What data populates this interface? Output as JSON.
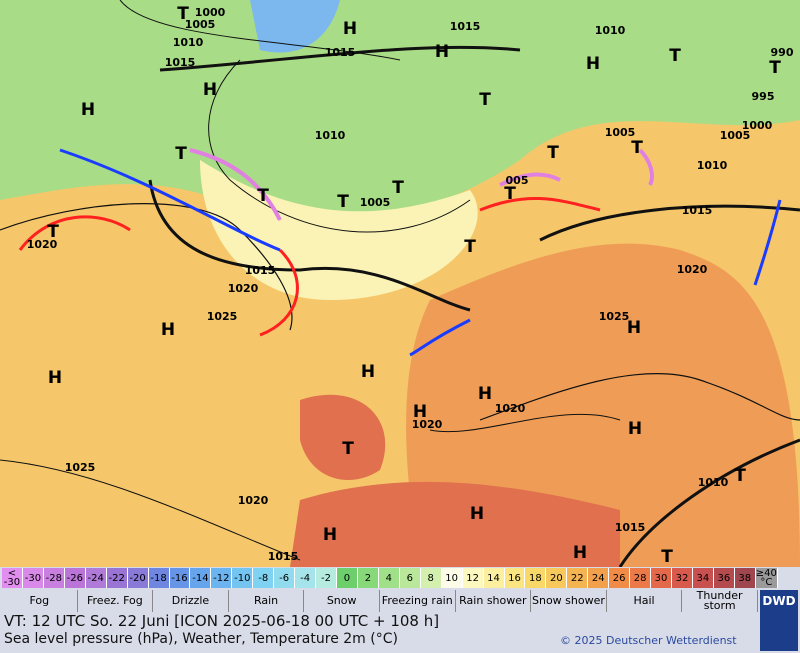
{
  "map": {
    "pressure_labels": [
      "1000",
      "1005",
      "1010",
      "1015",
      "1015",
      "1010",
      "1015",
      "1010",
      "1005",
      "1005",
      "1010",
      "1015",
      "1000",
      "1005",
      "995",
      "990",
      "1020",
      "1015",
      "1020",
      "1025",
      "1020",
      "1025",
      "1020",
      "1020",
      "1025",
      "1020",
      "1010",
      "1015",
      "1015",
      "005"
    ],
    "centers": [
      "H",
      "H",
      "H",
      "H",
      "H",
      "H",
      "H",
      "H",
      "H",
      "H",
      "H",
      "H",
      "H",
      "H",
      "H",
      "T",
      "T",
      "T",
      "T",
      "T",
      "T",
      "T",
      "T",
      "T",
      "T",
      "T",
      "T",
      "T",
      "T",
      "T",
      "T"
    ]
  },
  "temperature_scale": {
    "steps": [
      {
        "label": "<\n-30",
        "color": "#e28ef0"
      },
      {
        "label": "-30",
        "color": "#d98ae8"
      },
      {
        "label": "-28",
        "color": "#c97fe0"
      },
      {
        "label": "-26",
        "color": "#bb74d8"
      },
      {
        "label": "-24",
        "color": "#b07ad8"
      },
      {
        "label": "-22",
        "color": "#9a74d4"
      },
      {
        "label": "-20",
        "color": "#8a7ad8"
      },
      {
        "label": "-18",
        "color": "#6f86e0"
      },
      {
        "label": "-16",
        "color": "#6694e6"
      },
      {
        "label": "-14",
        "color": "#66a4ec"
      },
      {
        "label": "-12",
        "color": "#6cb4f0"
      },
      {
        "label": "-10",
        "color": "#74c4f2"
      },
      {
        "label": "-8",
        "color": "#80d2f2"
      },
      {
        "label": "-6",
        "color": "#90dcee"
      },
      {
        "label": "-4",
        "color": "#a4e4ea"
      },
      {
        "label": "-2",
        "color": "#b6ece0"
      },
      {
        "label": "0",
        "color": "#6ccf6c"
      },
      {
        "label": "2",
        "color": "#86d878"
      },
      {
        "label": "4",
        "color": "#a0e088"
      },
      {
        "label": "6",
        "color": "#bae89a"
      },
      {
        "label": "8",
        "color": "#d4f0ae"
      },
      {
        "label": "10",
        "color": "#fcfce8"
      },
      {
        "label": "12",
        "color": "#fdf7c0"
      },
      {
        "label": "14",
        "color": "#fcf0a0"
      },
      {
        "label": "16",
        "color": "#fbe580"
      },
      {
        "label": "18",
        "color": "#f9d86a"
      },
      {
        "label": "20",
        "color": "#f7c85c"
      },
      {
        "label": "22",
        "color": "#f5b452"
      },
      {
        "label": "24",
        "color": "#f3a04c"
      },
      {
        "label": "26",
        "color": "#f08c48"
      },
      {
        "label": "28",
        "color": "#ec7a48"
      },
      {
        "label": "30",
        "color": "#e4684a"
      },
      {
        "label": "32",
        "color": "#d85a4c"
      },
      {
        "label": "34",
        "color": "#c8504e"
      },
      {
        "label": "36",
        "color": "#b44a4e"
      },
      {
        "label": "38",
        "color": "#a0464e"
      },
      {
        "label": "≥40\n°C",
        "color": "#9a9a9a"
      }
    ]
  },
  "legend": [
    "Fog",
    "Freez. Fog",
    "Drizzle",
    "Rain",
    "Snow",
    "Freezing rain",
    "Rain shower",
    "Snow shower",
    "Hail",
    "Thunder storm"
  ],
  "footer": {
    "valid_time": "VT: 12 UTC So.  22 Juni [ICON 2025-06-18  00 UTC + 108 h]",
    "description": "Sea level pressure (hPa), Weather, Temperature 2m (°C)",
    "copyright": "© 2025 Deutscher Wetterdienst",
    "logo": "DWD"
  }
}
